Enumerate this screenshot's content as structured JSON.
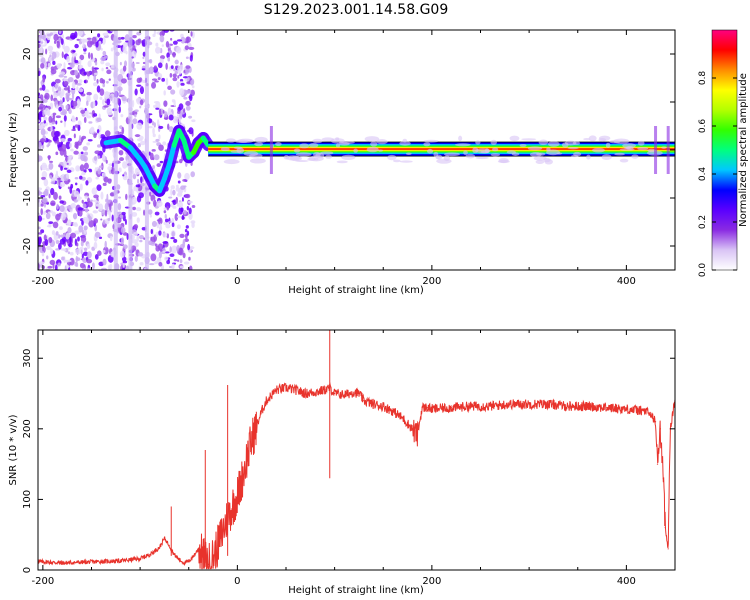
{
  "title": "S129.2023.001.14.58.G09",
  "chart_data": [
    {
      "type": "heatmap",
      "xlabel": "Height of straight line (km)",
      "ylabel": "Frequency (Hz)",
      "xlim": [
        -205,
        450
      ],
      "ylim": [
        -25,
        25
      ],
      "xticks": [
        -200,
        0,
        200,
        400
      ],
      "yticks": [
        -20,
        -10,
        0,
        10,
        20
      ],
      "colorbar": {
        "label": "Normalized spectral amplitude",
        "range": [
          0,
          1
        ],
        "ticks": [
          "0.0",
          "0.2",
          "0.4",
          "0.6",
          "0.8"
        ],
        "colormap": [
          "#ffffff",
          "#d9c4f5",
          "#8a2be2",
          "#5a00ff",
          "#0000ff",
          "#00c8ff",
          "#00ff7f",
          "#32ff00",
          "#b4ff00",
          "#ffff00",
          "#ff8c00",
          "#ff0000",
          "#ff0080"
        ]
      },
      "ridge": {
        "x": [
          -135,
          -120,
          -110,
          -100,
          -95,
          -90,
          -85,
          -80,
          -75,
          -70,
          -65,
          -60,
          -55,
          -50,
          -45,
          -40,
          -35,
          -30,
          0,
          35,
          100,
          200,
          300,
          400,
          440,
          450
        ],
        "freq": [
          1.5,
          2,
          0.5,
          -2,
          -3.5,
          -5.5,
          -7.5,
          -8.5,
          -6,
          -3,
          1,
          4,
          2,
          -1.5,
          -0.5,
          1.5,
          2.5,
          1,
          0.3,
          0.2,
          0.2,
          0.2,
          0.2,
          0.2,
          0.2,
          0.2
        ],
        "amplitude": [
          0.45,
          0.5,
          0.45,
          0.4,
          0.4,
          0.45,
          0.5,
          0.45,
          0.4,
          0.45,
          0.5,
          0.5,
          0.5,
          0.5,
          0.55,
          0.55,
          0.5,
          0.5,
          1,
          1,
          1,
          1,
          1,
          1,
          1,
          1
        ]
      }
    },
    {
      "type": "line",
      "xlabel": "Height of straight line (km)",
      "ylabel": "SNR (10 * v/v)",
      "xlim": [
        -205,
        450
      ],
      "ylim": [
        0,
        340
      ],
      "xticks": [
        -200,
        0,
        200,
        400
      ],
      "yticks": [
        0,
        100,
        200,
        300
      ],
      "color": "#e8332c",
      "series": [
        {
          "x": [
            -205,
            -180,
            -160,
            -140,
            -120,
            -100,
            -90,
            -80,
            -75,
            -70,
            -65,
            -60,
            -55,
            -50,
            -45,
            -40,
            -35,
            -30,
            -25,
            -20,
            -15,
            -10,
            -5,
            0,
            5,
            10,
            15,
            20,
            25,
            30,
            40,
            50,
            60,
            70,
            80,
            90,
            95,
            100,
            110,
            120,
            125,
            130,
            140,
            150,
            160,
            170,
            180,
            185,
            190,
            195,
            200,
            220,
            240,
            260,
            280,
            300,
            320,
            340,
            360,
            380,
            400,
            420,
            425,
            430,
            432,
            435,
            438,
            440,
            443,
            445,
            450
          ],
          "values": [
            12,
            10,
            11,
            12,
            13,
            16,
            22,
            32,
            45,
            35,
            22,
            15,
            10,
            12,
            20,
            30,
            18,
            8,
            18,
            35,
            55,
            75,
            90,
            105,
            130,
            160,
            185,
            205,
            225,
            240,
            255,
            258,
            255,
            250,
            252,
            255,
            258,
            250,
            248,
            252,
            250,
            240,
            235,
            232,
            225,
            215,
            200,
            190,
            230,
            230,
            228,
            230,
            232,
            232,
            235,
            235,
            235,
            232,
            232,
            230,
            228,
            225,
            220,
            210,
            150,
            200,
            130,
            60,
            30,
            200,
            240
          ]
        }
      ]
    }
  ]
}
